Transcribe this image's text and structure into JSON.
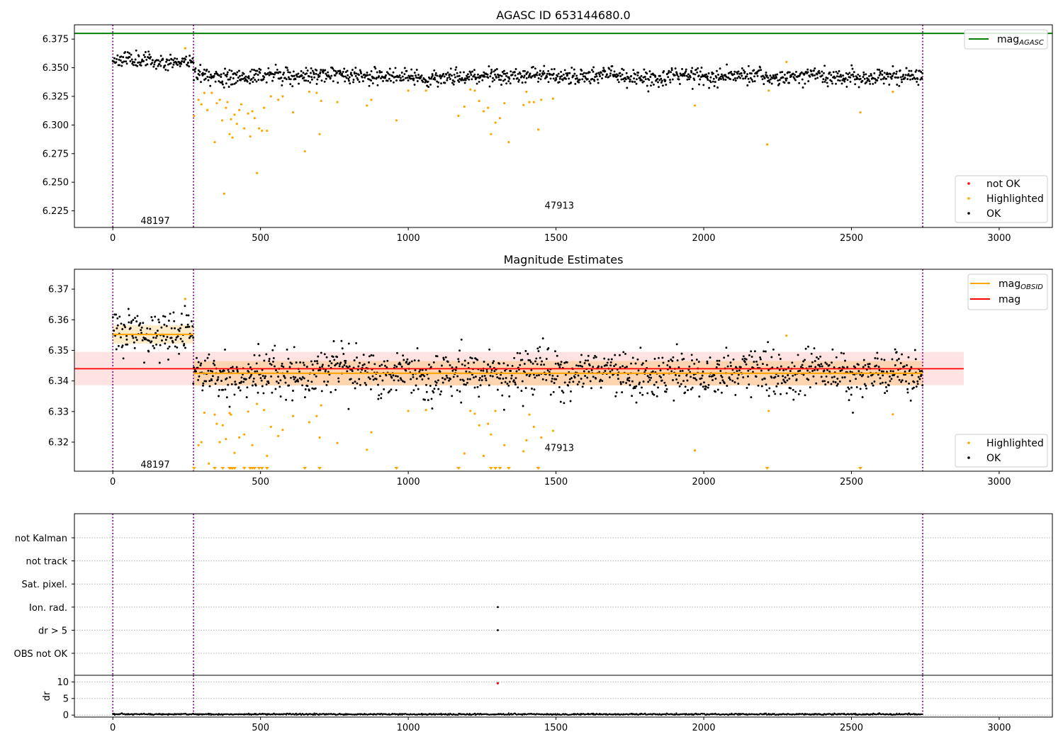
{
  "chart_data": [
    {
      "type": "scatter",
      "title": "AGASC ID 653144680.0",
      "xlim": [
        -130,
        3180
      ],
      "ylim": [
        6.2105,
        6.3875
      ],
      "xticks": [
        0,
        500,
        1000,
        1500,
        2000,
        2500,
        3000
      ],
      "yticks": [
        "6.225",
        "6.250",
        "6.275",
        "6.300",
        "6.325",
        "6.350",
        "6.375"
      ],
      "obsids": [
        {
          "label": "48197",
          "x": 137,
          "y": 6.216
        },
        {
          "label": "47913",
          "x": 1505,
          "y": 6.2295
        }
      ],
      "obs_boundaries": [
        0,
        273,
        2741
      ],
      "hline": {
        "name": "mag",
        "sub": "AGASC",
        "y": 6.38,
        "color": "#008000"
      },
      "legend_lines": [
        {
          "label": "mag",
          "sub": "AGASC",
          "color": "#008000"
        }
      ],
      "legend_points": [
        {
          "label": "not OK",
          "color": "#ff0000"
        },
        {
          "label": "Highlighted",
          "color": "#ffa500"
        },
        {
          "label": "OK",
          "color": "#000000"
        }
      ],
      "segments": [
        {
          "x0": 0,
          "x1": 273,
          "mean": 6.356,
          "noise": 0.0032
        },
        {
          "x0": 273,
          "x1": 2741,
          "mean": 6.3425,
          "noise": 0.0036
        }
      ],
      "highlighted": [
        [
          245,
          6.367
        ],
        [
          275,
          6.308
        ],
        [
          290,
          6.322
        ],
        [
          300,
          6.318
        ],
        [
          310,
          6.328
        ],
        [
          320,
          6.313
        ],
        [
          335,
          6.328
        ],
        [
          345,
          6.285
        ],
        [
          352,
          6.319
        ],
        [
          362,
          6.322
        ],
        [
          370,
          6.304
        ],
        [
          377,
          6.24
        ],
        [
          383,
          6.315
        ],
        [
          388,
          6.32
        ],
        [
          395,
          6.292
        ],
        [
          400,
          6.305
        ],
        [
          405,
          6.289
        ],
        [
          412,
          6.309
        ],
        [
          420,
          6.301
        ],
        [
          428,
          6.313
        ],
        [
          435,
          6.318
        ],
        [
          445,
          6.297
        ],
        [
          458,
          6.31
        ],
        [
          465,
          6.29
        ],
        [
          472,
          6.312
        ],
        [
          480,
          6.306
        ],
        [
          488,
          6.258
        ],
        [
          495,
          6.297
        ],
        [
          505,
          6.295
        ],
        [
          512,
          6.315
        ],
        [
          522,
          6.295
        ],
        [
          535,
          6.325
        ],
        [
          560,
          6.322
        ],
        [
          575,
          6.325
        ],
        [
          610,
          6.311
        ],
        [
          650,
          6.277
        ],
        [
          665,
          6.329
        ],
        [
          690,
          6.328
        ],
        [
          700,
          6.292
        ],
        [
          705,
          6.321
        ],
        [
          760,
          6.32
        ],
        [
          860,
          6.317
        ],
        [
          875,
          6.322
        ],
        [
          960,
          6.304
        ],
        [
          1000,
          6.33
        ],
        [
          1060,
          6.33
        ],
        [
          1170,
          6.308
        ],
        [
          1190,
          6.316
        ],
        [
          1210,
          6.331
        ],
        [
          1225,
          6.33
        ],
        [
          1240,
          6.321
        ],
        [
          1255,
          6.312
        ],
        [
          1270,
          6.315
        ],
        [
          1280,
          6.292
        ],
        [
          1295,
          6.302
        ],
        [
          1310,
          6.306
        ],
        [
          1325,
          6.319
        ],
        [
          1340,
          6.285
        ],
        [
          1390,
          6.3175
        ],
        [
          1400,
          6.329
        ],
        [
          1410,
          6.32
        ],
        [
          1425,
          6.32
        ],
        [
          1440,
          6.296
        ],
        [
          1450,
          6.322
        ],
        [
          1490,
          6.323
        ],
        [
          1970,
          6.317
        ],
        [
          2215,
          6.283
        ],
        [
          2220,
          6.33
        ],
        [
          2280,
          6.355
        ],
        [
          2530,
          6.311
        ],
        [
          2640,
          6.329
        ]
      ]
    },
    {
      "type": "scatter",
      "title": "Magnitude Estimates",
      "xlim": [
        -130,
        3180
      ],
      "ylim": [
        6.3105,
        6.3765
      ],
      "xticks": [
        0,
        500,
        1000,
        1500,
        2000,
        2500,
        3000
      ],
      "yticks": [
        "6.32",
        "6.33",
        "6.34",
        "6.35",
        "6.36",
        "6.37"
      ],
      "obsids": [
        {
          "label": "48197",
          "x": 137,
          "y": 6.3126
        },
        {
          "label": "47913",
          "x": 1505,
          "y": 6.318
        }
      ],
      "obs_boundaries": [
        0,
        273,
        2741
      ],
      "mag_line": {
        "y": 6.344,
        "x0": 0,
        "x1": 2880,
        "band": [
          6.3386,
          6.3495
        ],
        "color": "#ff0000"
      },
      "obsid_mags": [
        {
          "x0": 0,
          "x1": 273,
          "y": 6.3552,
          "band": [
            6.3522,
            6.3582
          ]
        },
        {
          "x0": 273,
          "x1": 2741,
          "y": 6.3425,
          "band": [
            6.3385,
            6.3465
          ]
        }
      ],
      "legend_lines": [
        {
          "label": "mag",
          "sub": "OBSID",
          "color": "#ffa500"
        },
        {
          "label": "mag",
          "sub": "",
          "color": "#ff0000"
        }
      ],
      "legend_points": [
        {
          "label": "Highlighted",
          "color": "#ffa500"
        },
        {
          "label": "OK",
          "color": "#000000"
        }
      ],
      "segments": [
        {
          "x0": 0,
          "x1": 273,
          "mean": 6.355,
          "noise": 0.0036
        },
        {
          "x0": 273,
          "x1": 2741,
          "mean": 6.3425,
          "noise": 0.0036
        }
      ],
      "highlighted": [
        [
          245,
          6.3668
        ],
        [
          290,
          6.319
        ],
        [
          300,
          6.32
        ],
        [
          310,
          6.3296
        ],
        [
          325,
          6.313
        ],
        [
          345,
          6.329
        ],
        [
          352,
          6.326
        ],
        [
          362,
          6.32
        ],
        [
          372,
          6.3255
        ],
        [
          383,
          6.321
        ],
        [
          395,
          6.3295
        ],
        [
          400,
          6.329
        ],
        [
          412,
          6.3165
        ],
        [
          428,
          6.3215
        ],
        [
          445,
          6.3225
        ],
        [
          458,
          6.33
        ],
        [
          472,
          6.319
        ],
        [
          488,
          6.3325
        ],
        [
          512,
          6.3305
        ],
        [
          522,
          6.3155
        ],
        [
          535,
          6.325
        ],
        [
          560,
          6.322
        ],
        [
          575,
          6.324
        ],
        [
          610,
          6.3285
        ],
        [
          665,
          6.3265
        ],
        [
          690,
          6.3285
        ],
        [
          700,
          6.3215
        ],
        [
          705,
          6.332
        ],
        [
          760,
          6.3197
        ],
        [
          860,
          6.3175
        ],
        [
          875,
          6.3232
        ],
        [
          1000,
          6.3302
        ],
        [
          1060,
          6.3305
        ],
        [
          1190,
          6.3163
        ],
        [
          1210,
          6.3302
        ],
        [
          1225,
          6.3293
        ],
        [
          1240,
          6.3255
        ],
        [
          1255,
          6.3155
        ],
        [
          1270,
          6.326
        ],
        [
          1280,
          6.3225
        ],
        [
          1295,
          6.3302
        ],
        [
          1325,
          6.319
        ],
        [
          1390,
          6.317
        ],
        [
          1400,
          6.3206
        ],
        [
          1410,
          6.329
        ],
        [
          1425,
          6.325
        ],
        [
          1450,
          6.3215
        ],
        [
          1490,
          6.3237
        ],
        [
          1970,
          6.3173
        ],
        [
          2220,
          6.3302
        ],
        [
          2280,
          6.3548
        ],
        [
          2640,
          6.3291
        ]
      ],
      "clipped_low": [
        275,
        345,
        372,
        395,
        400,
        405,
        412,
        445,
        465,
        472,
        480,
        495,
        505,
        522,
        650,
        700,
        960,
        1170,
        1280,
        1295,
        1310,
        1340,
        1440,
        2215,
        2530
      ]
    },
    {
      "type": "scatter",
      "title": "",
      "xlim": [
        -130,
        3180
      ],
      "xticks": [
        0,
        500,
        1000,
        1500,
        2000,
        2500,
        3000
      ],
      "obs_boundaries": [
        0,
        273,
        2741
      ],
      "flags": [
        "not Kalman",
        "not track",
        "Sat. pixel.",
        "Ion. rad.",
        "dr > 5",
        "OBS not OK"
      ],
      "flag_points": [
        {
          "flag": "Ion. rad.",
          "x": 1303
        },
        {
          "flag": "dr > 5",
          "x": 1303
        }
      ]
    },
    {
      "type": "scatter",
      "title": "",
      "xlim": [
        -130,
        3180
      ],
      "ylim": [
        -0.6,
        12
      ],
      "xticks": [
        0,
        500,
        1000,
        1500,
        2000,
        2500,
        3000
      ],
      "yticks": [
        "0",
        "5",
        "10"
      ],
      "ylabel": "dr",
      "obs_boundaries": [
        0,
        273,
        2741
      ],
      "outlier": {
        "x": 1303,
        "y": 9.6,
        "color": "#ff0000"
      },
      "baseline": {
        "mean": 0.25,
        "noise": 0.12
      }
    }
  ]
}
